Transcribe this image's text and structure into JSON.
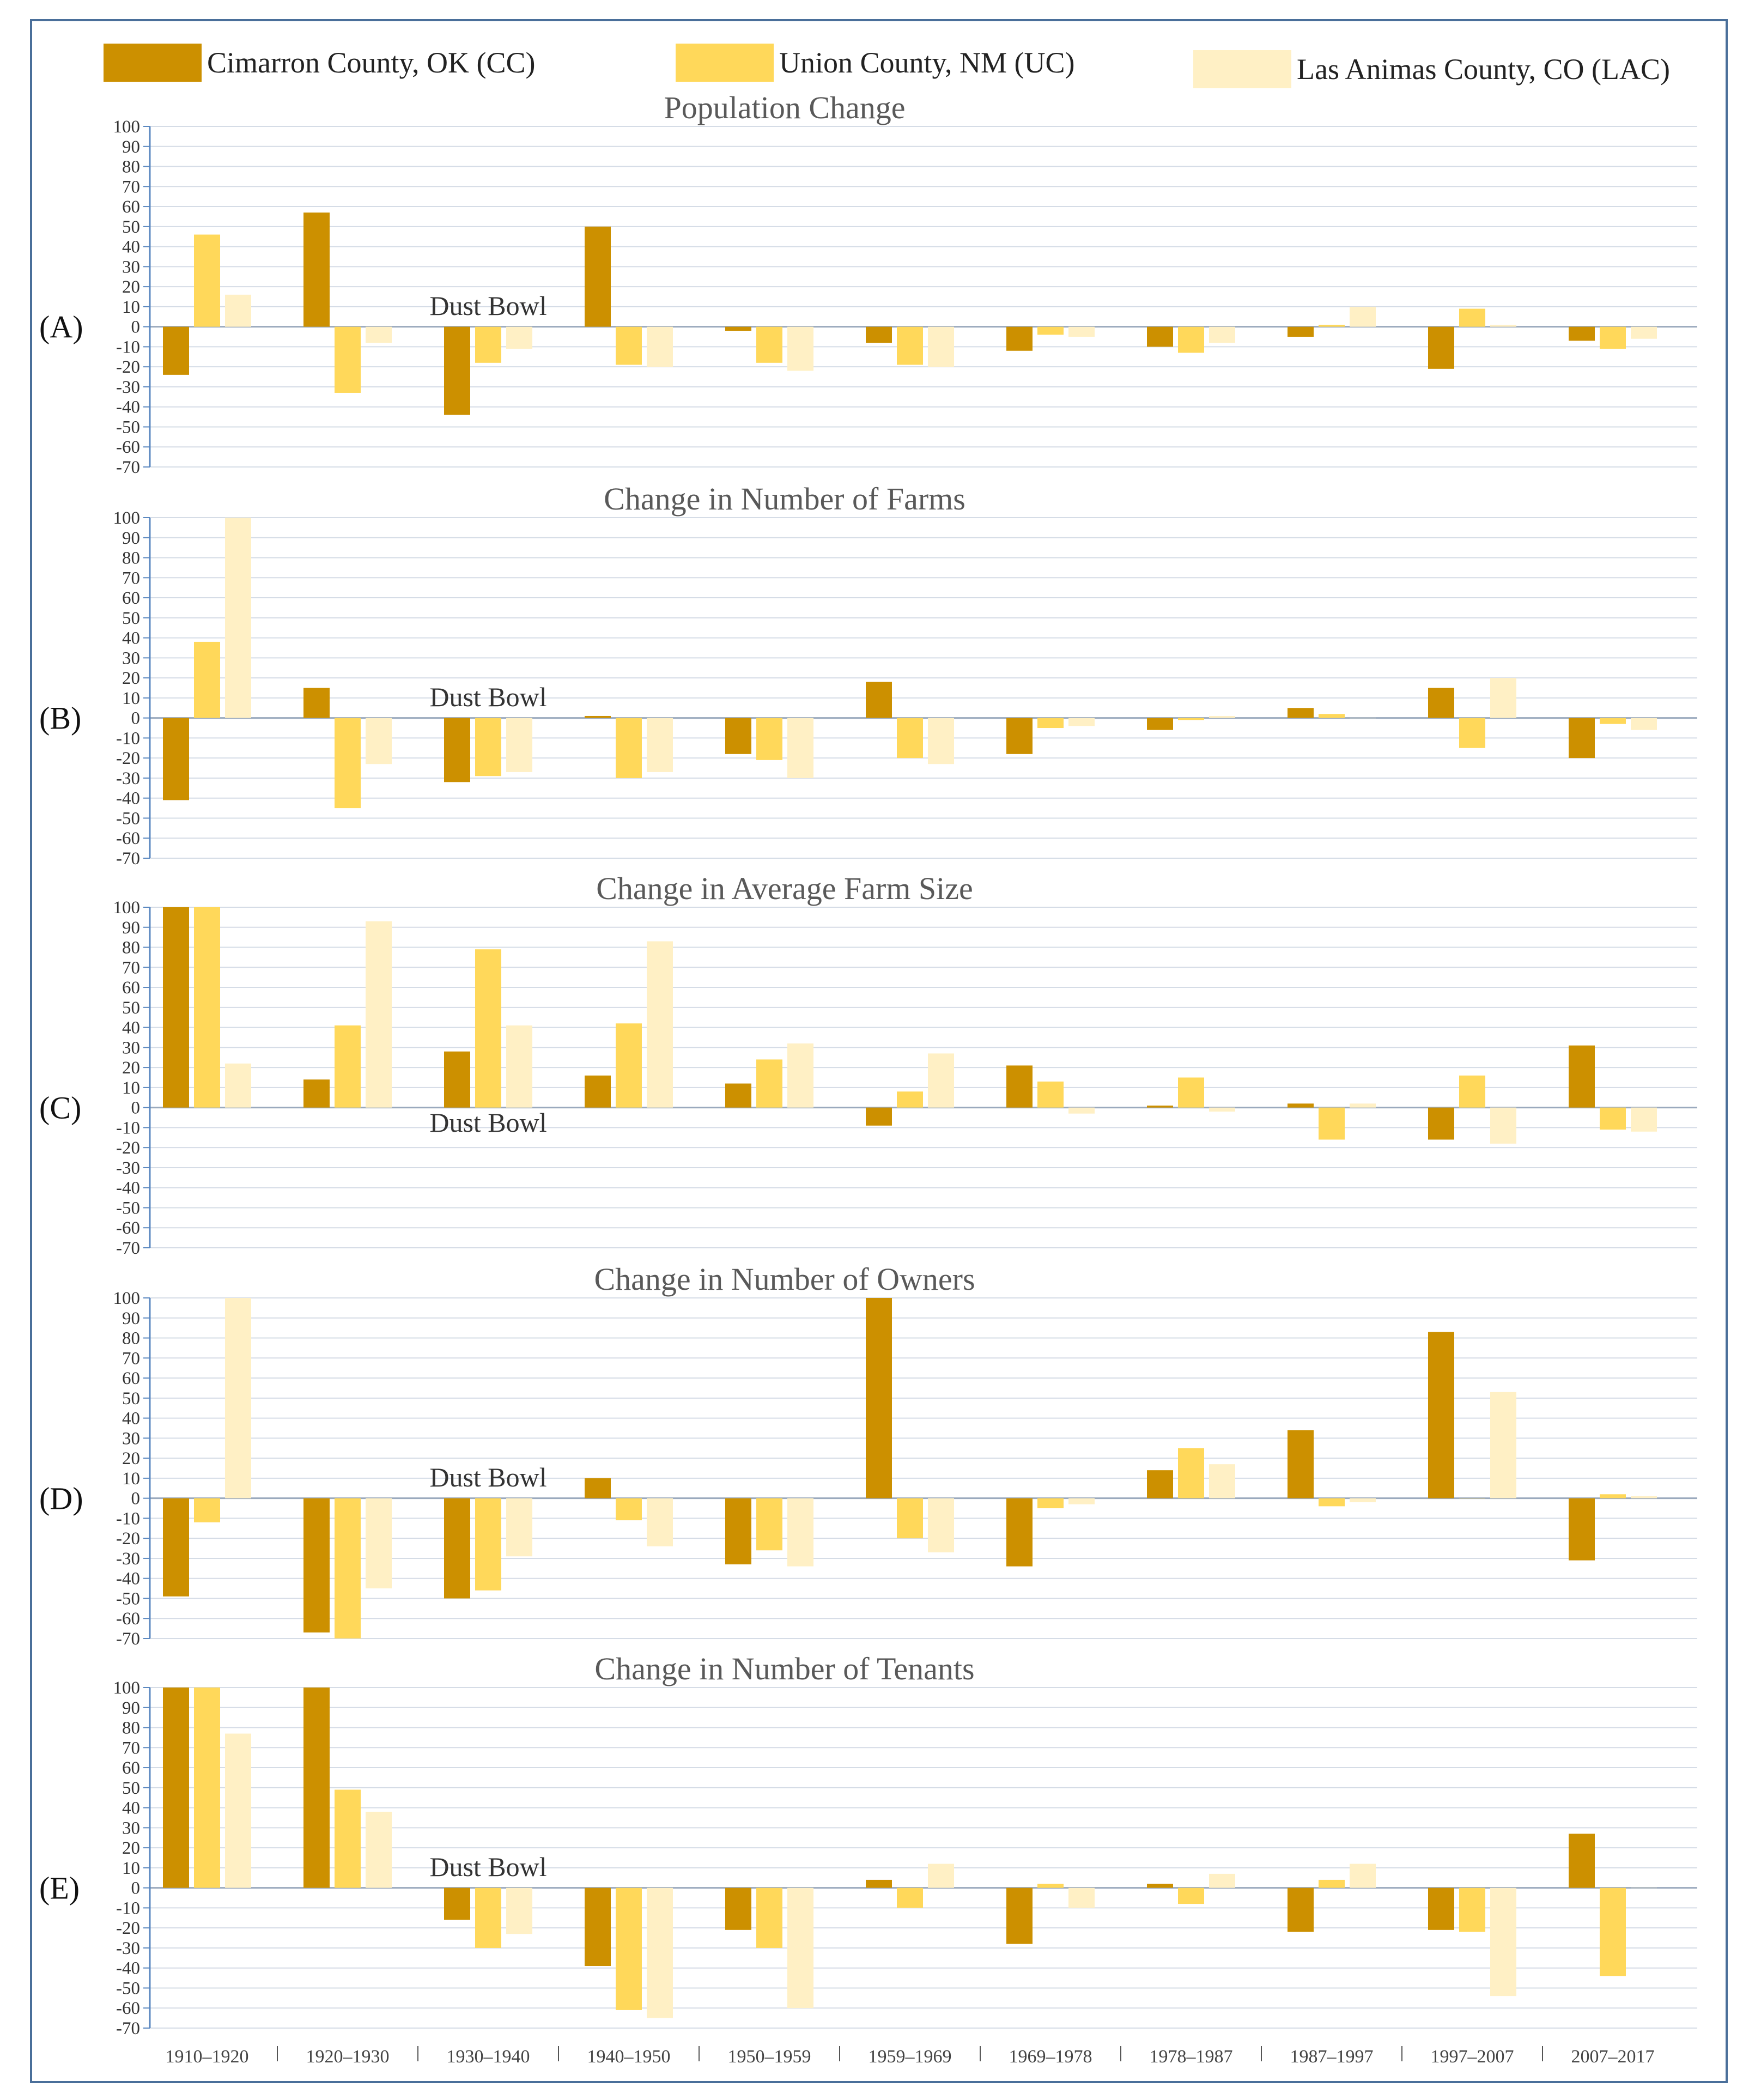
{
  "legend": [
    {
      "label": "Cimarron County, OK (CC)",
      "color": "#cc9000"
    },
    {
      "label": "Union County, NM (UC)",
      "color": "#ffd85a"
    },
    {
      "label": "Las Animas County, CO (LAC)",
      "color": "#fff0c5"
    }
  ],
  "dust_bowl_label": "Dust Bowl",
  "chart_data": [
    {
      "type": "bar",
      "letter": "(A)",
      "title": "Population Change",
      "categories": [
        "1910–1920",
        "1920–1930",
        "1930–1940",
        "1940–1950",
        "1950–1959",
        "1959–1969",
        "1969–1978",
        "1978–1987",
        "1987–1997",
        "1997–2007",
        "2007–2017"
      ],
      "ylim": [
        -70,
        100
      ],
      "ticks": [
        100,
        90,
        80,
        70,
        60,
        50,
        40,
        30,
        20,
        10,
        0,
        -10,
        -20,
        -30,
        -40,
        -50,
        -60,
        -70
      ],
      "annotation": {
        "text": "Dust Bowl",
        "value": 10,
        "category_index": 2
      },
      "series": [
        {
          "name": "Cimarron County, OK (CC)",
          "values": [
            -24,
            57,
            -44,
            50,
            -2,
            -8,
            -12,
            -10,
            -5,
            -21,
            -7
          ]
        },
        {
          "name": "Union County, NM (UC)",
          "values": [
            46,
            -33,
            -18,
            -19,
            -18,
            -19,
            -4,
            -13,
            1,
            9,
            -11
          ]
        },
        {
          "name": "Las Animas County, CO (LAC)",
          "values": [
            16,
            -8,
            -11,
            -20,
            -22,
            -20,
            -5,
            -8,
            10,
            1,
            -6
          ]
        }
      ]
    },
    {
      "type": "bar",
      "letter": "(B)",
      "title": "Change in Number of Farms",
      "categories": [
        "1910–1920",
        "1920–1930",
        "1930–1940",
        "1940–1950",
        "1950–1959",
        "1959–1969",
        "1969–1978",
        "1978–1987",
        "1987–1997",
        "1997–2007",
        "2007–2017"
      ],
      "ylim": [
        -70,
        100
      ],
      "ticks": [
        100,
        90,
        80,
        70,
        60,
        50,
        40,
        30,
        20,
        10,
        0,
        -10,
        -20,
        -30,
        -40,
        -50,
        -60,
        -70
      ],
      "annotation": {
        "text": "Dust Bowl",
        "value": 10,
        "category_index": 2
      },
      "series": [
        {
          "name": "Cimarron County, OK (CC)",
          "values": [
            -41,
            15,
            -32,
            1,
            -18,
            18,
            -18,
            -6,
            5,
            15,
            -20
          ]
        },
        {
          "name": "Union County, NM (UC)",
          "values": [
            38,
            -45,
            -29,
            -30,
            -21,
            -20,
            -5,
            -1,
            2,
            -15,
            -3
          ]
        },
        {
          "name": "Las Animas County, CO (LAC)",
          "values": [
            100,
            -23,
            -27,
            -27,
            -30,
            -23,
            -4,
            1,
            0,
            20,
            -6
          ]
        }
      ]
    },
    {
      "type": "bar",
      "letter": "(C)",
      "title": "Change in Average Farm Size",
      "categories": [
        "1910–1920",
        "1920–1930",
        "1930–1940",
        "1940–1950",
        "1950–1959",
        "1959–1969",
        "1969–1978",
        "1978–1987",
        "1987–1997",
        "1997–2007",
        "2007–2017"
      ],
      "ylim": [
        -70,
        100
      ],
      "ticks": [
        100,
        90,
        80,
        70,
        60,
        50,
        40,
        30,
        20,
        10,
        0,
        -10,
        -20,
        -30,
        -40,
        -50,
        -60,
        -70
      ],
      "annotation": {
        "text": "Dust Bowl",
        "value": -8,
        "category_index": 2
      },
      "series": [
        {
          "name": "Cimarron County, OK (CC)",
          "values": [
            100,
            14,
            28,
            16,
            12,
            -9,
            21,
            1,
            2,
            -16,
            31
          ]
        },
        {
          "name": "Union County, NM (UC)",
          "values": [
            100,
            41,
            79,
            42,
            24,
            8,
            13,
            15,
            -16,
            16,
            -11
          ]
        },
        {
          "name": "Las Animas County, CO (LAC)",
          "values": [
            22,
            93,
            41,
            83,
            32,
            27,
            -3,
            -2,
            2,
            -18,
            -12
          ]
        }
      ]
    },
    {
      "type": "bar",
      "letter": "(D)",
      "title": "Change in Number of Owners",
      "categories": [
        "1910–1920",
        "1920–1930",
        "1930–1940",
        "1940–1950",
        "1950–1959",
        "1959–1969",
        "1969–1978",
        "1978–1987",
        "1987–1997",
        "1997–2007",
        "2007–2017"
      ],
      "ylim": [
        -70,
        100
      ],
      "ticks": [
        100,
        90,
        80,
        70,
        60,
        50,
        40,
        30,
        20,
        10,
        0,
        -10,
        -20,
        -30,
        -40,
        -50,
        -60,
        -70
      ],
      "annotation": {
        "text": "Dust Bowl",
        "value": 10,
        "category_index": 2
      },
      "series": [
        {
          "name": "Cimarron County, OK (CC)",
          "values": [
            -49,
            -67,
            -50,
            10,
            -33,
            100,
            -34,
            14,
            34,
            83,
            -31
          ]
        },
        {
          "name": "Union County, NM (UC)",
          "values": [
            -12,
            -70,
            -46,
            -11,
            -26,
            -20,
            -5,
            25,
            -4,
            0,
            2
          ]
        },
        {
          "name": "Las Animas County, CO (LAC)",
          "values": [
            100,
            -45,
            -29,
            -24,
            -34,
            -27,
            -3,
            17,
            -2,
            53,
            1
          ]
        }
      ]
    },
    {
      "type": "bar",
      "letter": "(E)",
      "title": "Change in Number of Tenants",
      "categories": [
        "1910–1920",
        "1920–1930",
        "1930–1940",
        "1940–1950",
        "1950–1959",
        "1959–1969",
        "1969–1978",
        "1978–1987",
        "1987–1997",
        "1997–2007",
        "2007–2017"
      ],
      "ylim": [
        -70,
        100
      ],
      "ticks": [
        100,
        90,
        80,
        70,
        60,
        50,
        40,
        30,
        20,
        10,
        0,
        -10,
        -20,
        -30,
        -40,
        -50,
        -60,
        -70
      ],
      "annotation": {
        "text": "Dust Bowl",
        "value": 10,
        "category_index": 2
      },
      "series": [
        {
          "name": "Cimarron County, OK (CC)",
          "values": [
            100,
            100,
            -16,
            -39,
            -21,
            4,
            -28,
            2,
            -22,
            -21,
            27
          ]
        },
        {
          "name": "Union County, NM (UC)",
          "values": [
            100,
            49,
            -30,
            -61,
            -30,
            -10,
            2,
            -8,
            4,
            -22,
            -44
          ]
        },
        {
          "name": "Las Animas County, CO (LAC)",
          "values": [
            77,
            38,
            -23,
            -65,
            -60,
            12,
            -10,
            7,
            12,
            -54,
            0
          ]
        }
      ]
    }
  ]
}
